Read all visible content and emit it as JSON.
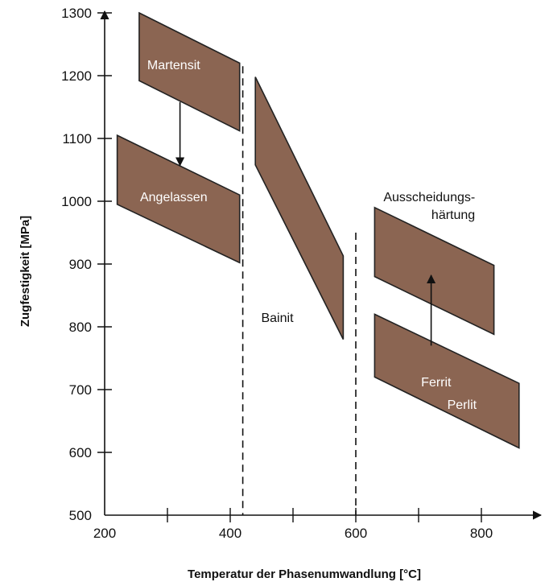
{
  "chart_data": {
    "type": "area",
    "xlabel": "Temperatur der Phasenumwandlung [°C]",
    "ylabel": "Zugfestigkeit [MPa]",
    "xlim": [
      200,
      900
    ],
    "ylim": [
      500,
      1300
    ],
    "x_ticks": [
      200,
      300,
      400,
      500,
      600,
      700,
      800
    ],
    "x_tick_labels": [
      "200",
      "",
      "400",
      "",
      "600",
      "",
      "800"
    ],
    "y_ticks": [
      500,
      600,
      700,
      800,
      900,
      1000,
      1100,
      1200,
      1300
    ],
    "y_tick_labels": [
      "500",
      "600",
      "700",
      "800",
      "900",
      "1000",
      "1100",
      "1200",
      "1300"
    ],
    "fill_color": "#8b6552",
    "edge_color": "#222222",
    "regions": [
      {
        "label": "Martensit",
        "polygon": [
          [
            255,
            1300
          ],
          [
            415,
            1220
          ],
          [
            415,
            1112
          ],
          [
            255,
            1192
          ]
        ],
        "label_at": [
          310,
          1210
        ],
        "label_color": "#ffffff"
      },
      {
        "label": "Angelassen",
        "polygon": [
          [
            220,
            1105
          ],
          [
            415,
            1010
          ],
          [
            415,
            902
          ],
          [
            220,
            995
          ]
        ],
        "label_at": [
          310,
          1000
        ],
        "label_color": "#ffffff"
      },
      {
        "label": "Bainit",
        "polygon": [
          [
            440,
            1198
          ],
          [
            580,
            913
          ],
          [
            580,
            780
          ],
          [
            440,
            1058
          ]
        ],
        "label_at": [
          475,
          808
        ],
        "label_color": "#111111"
      },
      {
        "label": "Ausscheidungs-\nhärtung",
        "polygon": [
          [
            630,
            990
          ],
          [
            820,
            898
          ],
          [
            820,
            788
          ],
          [
            630,
            880
          ]
        ],
        "label_at": [
          790,
          1000
        ],
        "label_color": "#111111"
      },
      {
        "label": "Ferrit\nPerlit",
        "polygon": [
          [
            630,
            820
          ],
          [
            860,
            710
          ],
          [
            860,
            607
          ],
          [
            630,
            720
          ]
        ],
        "label_at": [
          728,
          705
        ],
        "label_color": "#ffffff"
      }
    ],
    "vlines": [
      420,
      600
    ],
    "vline_style": "dashed",
    "arrows": [
      {
        "from": [
          320,
          1158
        ],
        "to": [
          320,
          1057
        ]
      },
      {
        "from": [
          720,
          770
        ],
        "to": [
          720,
          882
        ]
      }
    ],
    "grid": false,
    "legend": "none"
  }
}
